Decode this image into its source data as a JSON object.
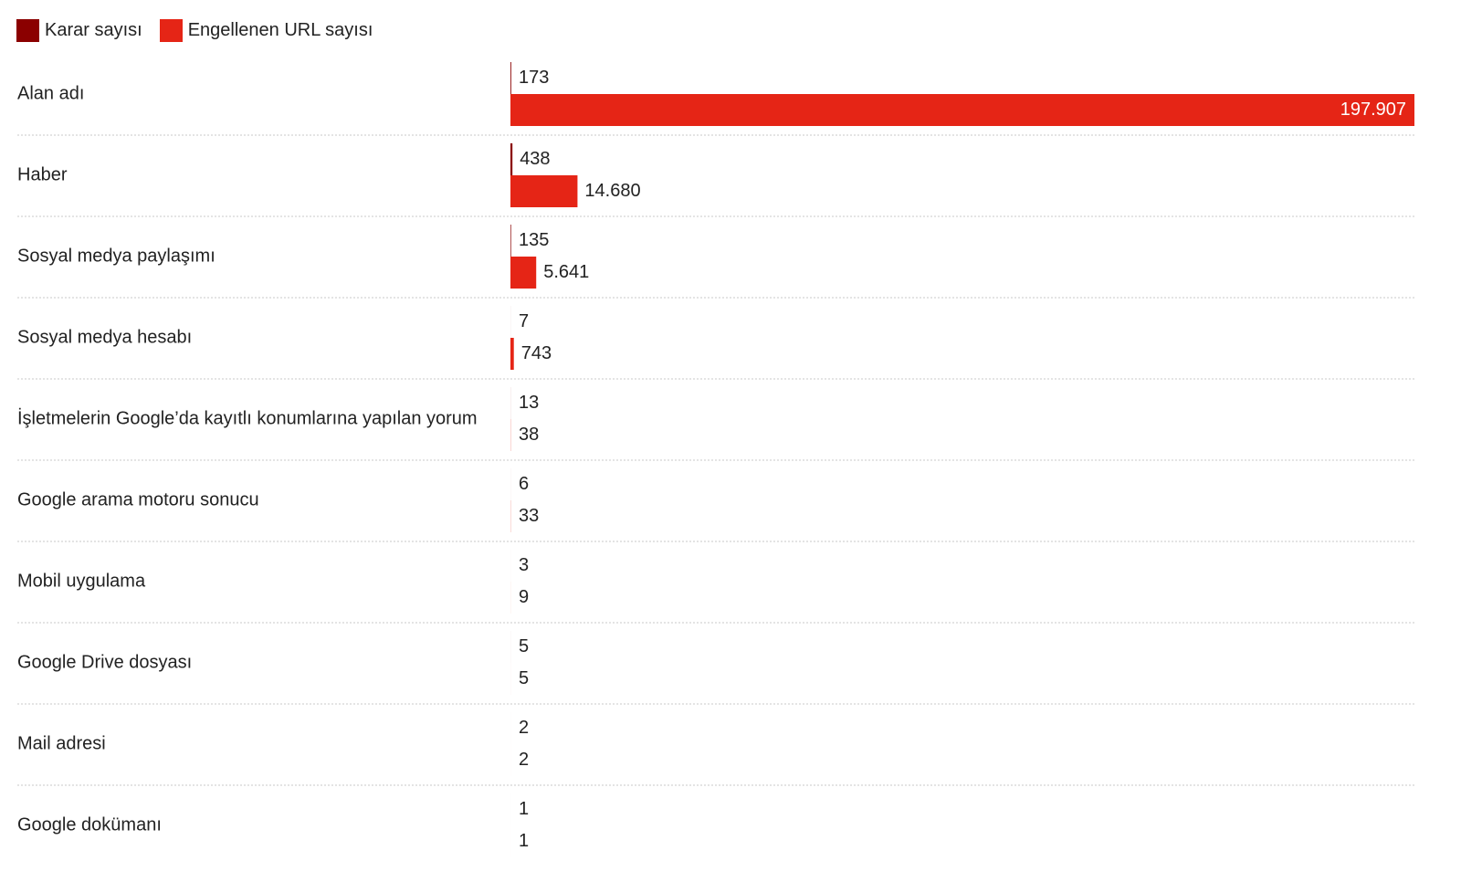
{
  "legend": [
    {
      "label": "Karar sayısı",
      "color": "#8b0000"
    },
    {
      "label": "Engellenen URL sayısı",
      "color": "#e52516"
    }
  ],
  "chart_data": {
    "type": "bar",
    "orientation": "horizontal",
    "categories": [
      "Alan adı",
      "Haber",
      "Sosyal medya paylaşımı",
      "Sosyal medya hesabı",
      "İşletmelerin Google’da kayıtlı konumlarına yapılan yorum",
      "Google arama motoru sonucu",
      "Mobil uygulama",
      "Google Drive dosyası",
      "Mail adresi",
      "Google dokümanı"
    ],
    "series": [
      {
        "name": "Karar sayısı",
        "color": "#8b0000",
        "values": [
          173,
          438,
          135,
          7,
          13,
          6,
          3,
          5,
          2,
          1
        ],
        "labels": [
          "173",
          "438",
          "135",
          "7",
          "13",
          "6",
          "3",
          "5",
          "2",
          "1"
        ]
      },
      {
        "name": "Engellenen URL sayısı",
        "color": "#e52516",
        "values": [
          197907,
          14680,
          5641,
          743,
          38,
          33,
          9,
          5,
          2,
          1
        ],
        "labels": [
          "197.907",
          "14.680",
          "5.641",
          "743",
          "38",
          "33",
          "9",
          "5",
          "2",
          "1"
        ]
      }
    ],
    "xlim": [
      0,
      197907
    ],
    "legend_position": "top-left",
    "grid": false
  }
}
